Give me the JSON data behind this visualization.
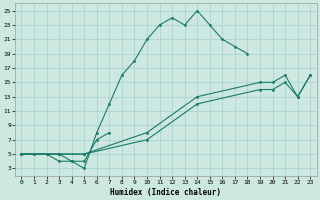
{
  "xlabel": "Humidex (Indice chaleur)",
  "bg_color": "#cce8e0",
  "line_color": "#1a7a6a",
  "grid_color": "#b0d8d0",
  "xlim": [
    -0.5,
    23.5
  ],
  "ylim": [
    2,
    26
  ],
  "xticks": [
    0,
    1,
    2,
    3,
    4,
    5,
    6,
    7,
    8,
    9,
    10,
    11,
    12,
    13,
    14,
    15,
    16,
    17,
    18,
    19,
    20,
    21,
    22,
    23
  ],
  "yticks": [
    3,
    5,
    7,
    9,
    11,
    13,
    15,
    17,
    19,
    21,
    23,
    25
  ],
  "series": [
    {
      "x": [
        0,
        1,
        2,
        3,
        4,
        5,
        6,
        7,
        8,
        9,
        10,
        11,
        12,
        13,
        14,
        15,
        16,
        17,
        18
      ],
      "y": [
        5,
        5,
        5,
        5,
        4,
        3,
        8,
        12,
        16,
        18,
        21,
        23,
        24,
        23,
        25,
        23,
        21,
        20,
        19
      ]
    },
    {
      "x": [
        0,
        1,
        2,
        3,
        4,
        5,
        6,
        7
      ],
      "y": [
        5,
        5,
        5,
        4,
        4,
        4,
        7,
        8
      ]
    },
    {
      "x": [
        0,
        3,
        5,
        10,
        14,
        19,
        20,
        21,
        22,
        23
      ],
      "y": [
        5,
        5,
        5,
        8,
        13,
        15,
        15,
        16,
        13,
        16
      ]
    },
    {
      "x": [
        0,
        3,
        5,
        10,
        14,
        19,
        20,
        21,
        22,
        23
      ],
      "y": [
        5,
        5,
        5,
        7,
        12,
        14,
        14,
        15,
        13,
        16
      ]
    }
  ]
}
